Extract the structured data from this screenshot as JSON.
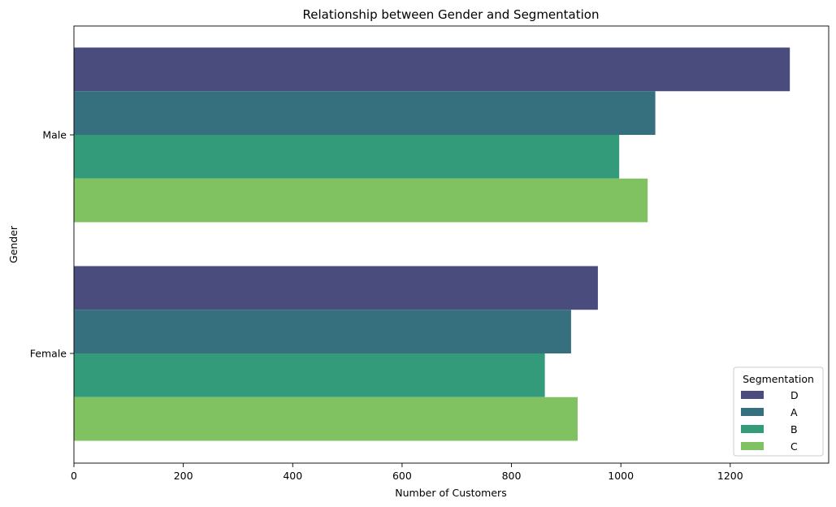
{
  "chart_data": {
    "type": "bar",
    "orientation": "horizontal",
    "title": "Relationship between Gender and Segmentation",
    "xlabel": "Number of Customers",
    "ylabel": "Gender",
    "categories": [
      "Male",
      "Female"
    ],
    "series": [
      {
        "name": "D",
        "color": "#4a4c7e",
        "values": [
          1309,
          958
        ]
      },
      {
        "name": "A",
        "color": "#36707e",
        "values": [
          1063,
          909
        ]
      },
      {
        "name": "B",
        "color": "#339a7a",
        "values": [
          997,
          861
        ]
      },
      {
        "name": "C",
        "color": "#80c261",
        "values": [
          1049,
          921
        ]
      }
    ],
    "xlim": [
      0,
      1380
    ],
    "xticks": [
      0,
      200,
      400,
      600,
      800,
      1000,
      1200
    ],
    "grid": false,
    "legend": {
      "title": "Segmentation",
      "placement": "lower-right"
    }
  }
}
